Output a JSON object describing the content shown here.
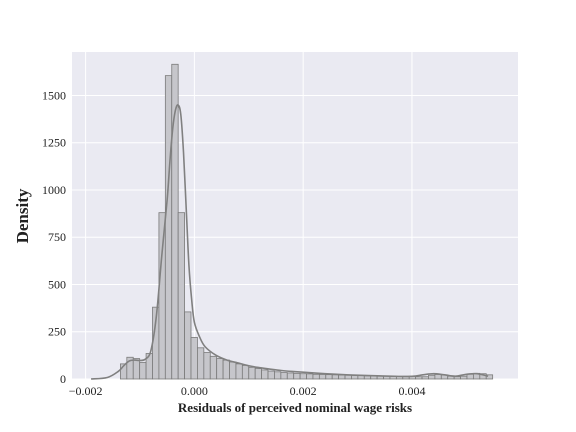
{
  "chart_data": {
    "type": "bar",
    "subtype": "histogram-with-kde",
    "title": "",
    "xlabel": "Residuals of perceived nominal wage risks",
    "ylabel": "Density",
    "xlim": [
      -0.00225,
      0.00595
    ],
    "ylim": [
      0,
      1730
    ],
    "x_ticks": [
      -0.002,
      0.0,
      0.002,
      0.004
    ],
    "x_tick_labels": [
      "−0.002",
      "0.000",
      "0.002",
      "0.004"
    ],
    "y_ticks": [
      0,
      250,
      500,
      750,
      1000,
      1250,
      1500
    ],
    "y_tick_labels": [
      "0",
      "250",
      "500",
      "750",
      "1000",
      "1250",
      "1500"
    ],
    "grid": true,
    "legend": "none",
    "bin_edges_start": -0.00136,
    "bin_width": 0.000118,
    "bin_density": [
      80,
      115,
      108,
      88,
      135,
      380,
      880,
      1605,
      1665,
      880,
      355,
      220,
      165,
      140,
      120,
      108,
      100,
      90,
      80,
      72,
      62,
      55,
      48,
      42,
      38,
      34,
      32,
      30,
      28,
      27,
      25,
      24,
      23,
      22,
      21,
      20,
      19,
      18,
      17,
      16,
      15,
      15,
      14,
      13,
      14,
      13,
      12,
      12,
      20,
      24,
      22,
      15,
      12,
      15,
      25,
      30,
      28,
      22
    ],
    "kde_x": [
      -0.0019,
      -0.0016,
      -0.0014,
      -0.0013,
      -0.0012,
      -0.0011,
      -0.001,
      -0.0009,
      -0.0008,
      -0.0007,
      -0.0006,
      -0.0005,
      -0.00045,
      -0.0004,
      -0.00035,
      -0.0003,
      -0.00025,
      -0.0002,
      -0.00015,
      -0.0001,
      -5e-05,
      0.0,
      0.0001,
      0.0002,
      0.0004,
      0.0006,
      0.0008,
      0.001,
      0.0012,
      0.0014,
      0.0016,
      0.0018,
      0.002,
      0.0024,
      0.0028,
      0.0032,
      0.0036,
      0.004,
      0.0042,
      0.0044,
      0.0046,
      0.0048,
      0.005,
      0.0052,
      0.0054
    ],
    "kde_y": [
      0,
      8,
      40,
      70,
      95,
      100,
      98,
      105,
      150,
      330,
      650,
      950,
      1150,
      1320,
      1420,
      1450,
      1400,
      1200,
      900,
      600,
      420,
      300,
      220,
      170,
      125,
      100,
      85,
      70,
      60,
      52,
      45,
      40,
      36,
      28,
      22,
      18,
      15,
      14,
      22,
      28,
      22,
      15,
      25,
      28,
      15
    ],
    "bar_color": "#c6c6cb",
    "bar_edge_color": "#7a7a7a",
    "kde_color": "#808080",
    "plot_background": "#eaeaf2",
    "grid_color": "#ffffff"
  }
}
